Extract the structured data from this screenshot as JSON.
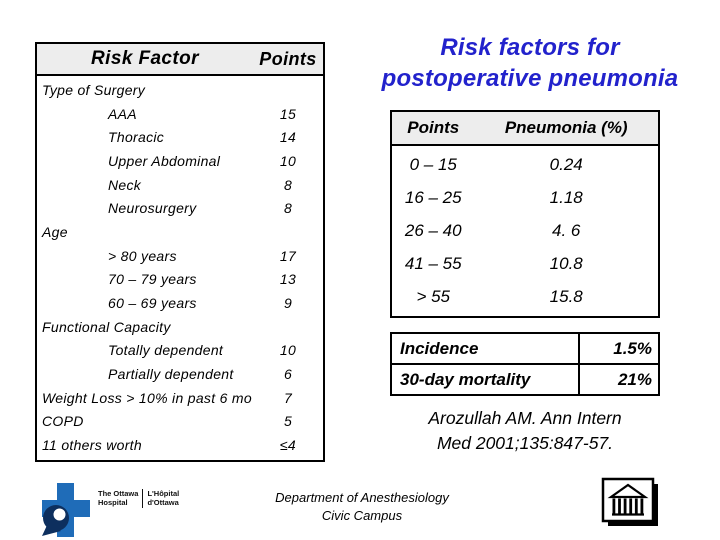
{
  "title": {
    "line1": "Risk factors for",
    "line2": "postoperative pneumonia"
  },
  "risk_table": {
    "col_risk_factor": "Risk Factor",
    "col_points": "Points",
    "rows": [
      {
        "label": "Type of Surgery",
        "points": "",
        "style": "group"
      },
      {
        "label": "AAA",
        "points": "15",
        "style": "item"
      },
      {
        "label": "Thoracic",
        "points": "14",
        "style": "item"
      },
      {
        "label": "Upper Abdominal",
        "points": "10",
        "style": "item"
      },
      {
        "label": "Neck",
        "points": "8",
        "style": "item"
      },
      {
        "label": "Neurosurgery",
        "points": "8",
        "style": "item"
      },
      {
        "label": "Age",
        "points": "",
        "style": "group"
      },
      {
        "label": "> 80 years",
        "points": "17",
        "style": "item"
      },
      {
        "label": "70 – 79 years",
        "points": "13",
        "style": "item"
      },
      {
        "label": "60 – 69 years",
        "points": "9",
        "style": "item"
      },
      {
        "label": "Functional Capacity",
        "points": "",
        "style": "group"
      },
      {
        "label": "Totally dependent",
        "points": "10",
        "style": "item"
      },
      {
        "label": "Partially dependent",
        "points": "6",
        "style": "item"
      },
      {
        "label": "Weight Loss > 10% in past 6 mo",
        "points": "7",
        "style": "flat"
      },
      {
        "label": "COPD",
        "points": "5",
        "style": "flat"
      },
      {
        "label": "11 others worth",
        "points": "≤4",
        "style": "flat"
      }
    ]
  },
  "pneumonia_table": {
    "col_points": "Points",
    "col_pneumonia": "Pneumonia (%)",
    "rows": [
      {
        "points": "0 – 15",
        "pneumonia": "0.24"
      },
      {
        "points": "16 – 25",
        "pneumonia": "1.18"
      },
      {
        "points": "26 – 40",
        "pneumonia": "4. 6"
      },
      {
        "points": "41 – 55",
        "pneumonia": "10.8"
      },
      {
        "points": "> 55",
        "pneumonia": "15.8"
      }
    ]
  },
  "summary_table": {
    "rows": [
      {
        "label": "Incidence",
        "value": "1.5%"
      },
      {
        "label": "30-day mortality",
        "value": "21%"
      }
    ]
  },
  "citation": {
    "line1": "Arozullah AM. Ann Intern",
    "line2": "Med 2001;135:847-57."
  },
  "footer": {
    "department_line1": "Department of Anesthesiology",
    "department_line2": "Civic Campus",
    "hospital_logo": {
      "name_en_line1": "The Ottawa",
      "name_en_line2": "Hospital",
      "name_fr_line1": "L'Hôpital",
      "name_fr_line2": "d'Ottawa"
    }
  },
  "colors": {
    "title_blue": "#2222cc",
    "table_header_gray": "#ededed",
    "logo_blue": "#1f6cb8",
    "logo_navy": "#0d2f5e"
  }
}
